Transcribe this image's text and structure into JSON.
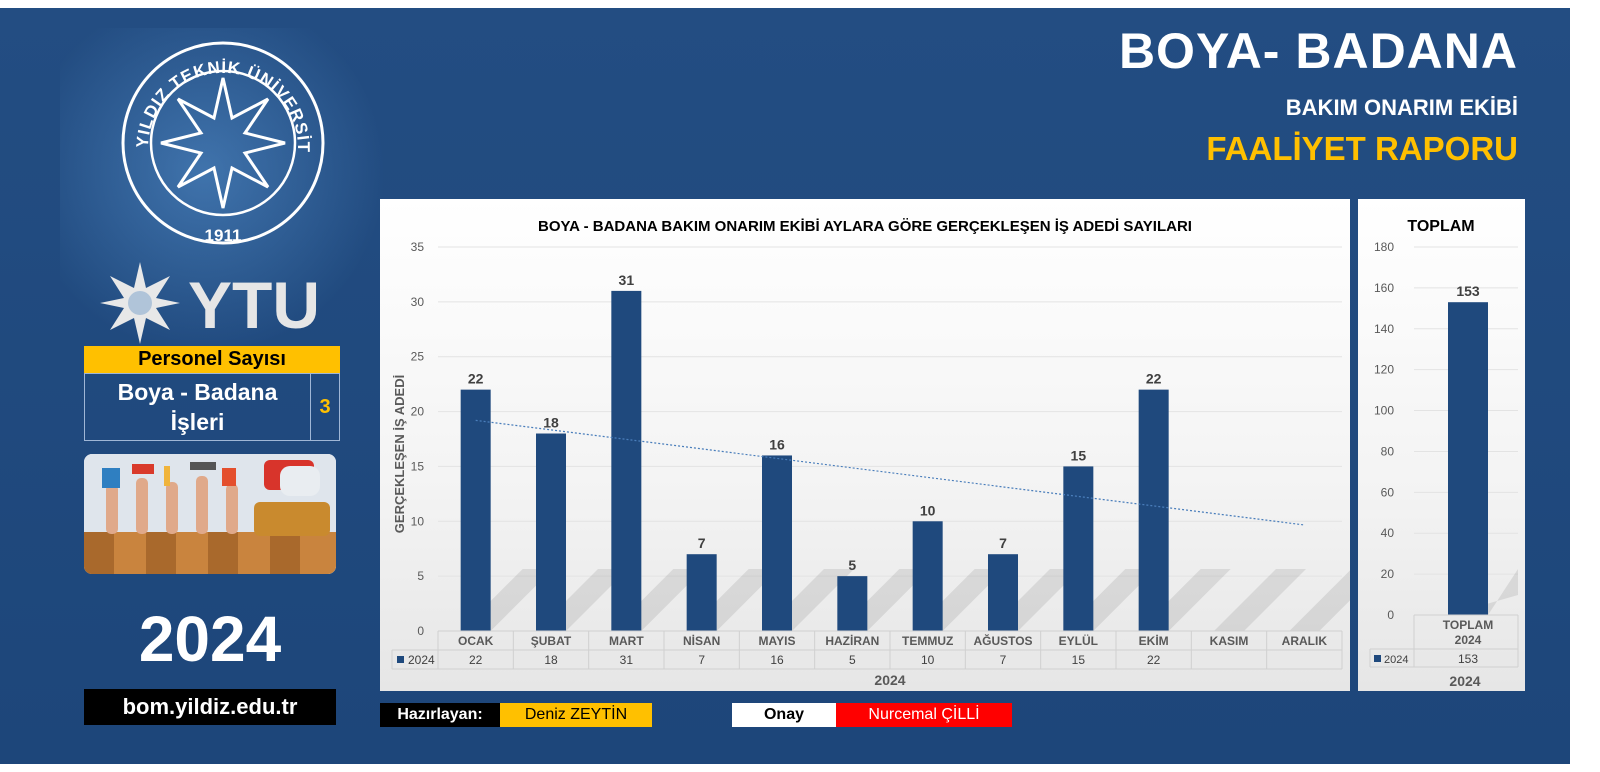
{
  "header": {
    "title": "BOYA- BADANA",
    "subtitle": "BAKIM ONARIM EKİBİ",
    "report": "FAALİYET RAPORU"
  },
  "logo": {
    "seal_text": "YILDIZ TEKNİK ÜNİVERSİTESİ",
    "seal_year": "1911",
    "brand": "YTU"
  },
  "personel": {
    "header": "Personel Sayısı",
    "label_line1": "Boya - Badana",
    "label_line2": "İşleri",
    "count": "3"
  },
  "year": "2024",
  "url": "bom.yildiz.edu.tr",
  "footer": {
    "prepared_label": "Hazırlayan:",
    "prepared_name": "Deniz ZEYTİN",
    "approval_label": "Onay",
    "approval_name": "Nurcemal ÇİLLİ"
  },
  "colors": {
    "background": "#1f4a7e",
    "bar": "#1f497d",
    "accent": "#ffc000",
    "approval": "#ff0000",
    "trend": "#4a7ebb"
  },
  "chart_data": [
    {
      "type": "bar",
      "title": "BOYA - BADANA BAKIM ONARIM EKİBİ AYLARA GÖRE GERÇEKLEŞEN İŞ ADEDİ SAYILARI",
      "ylabel": "GERÇEKLEŞEN İŞ ADEDİ",
      "xlabel": "2024",
      "ylim": [
        0,
        35
      ],
      "yticks": [
        0,
        5,
        10,
        15,
        20,
        25,
        30,
        35
      ],
      "categories": [
        "OCAK",
        "ŞUBAT",
        "MART",
        "NİSAN",
        "MAYIS",
        "HAZİRAN",
        "TEMMUZ",
        "AĞUSTOS",
        "EYLÜL",
        "EKİM",
        "KASIM",
        "ARALIK"
      ],
      "series": [
        {
          "name": "2024",
          "values": [
            22,
            18,
            31,
            7,
            16,
            5,
            10,
            7,
            15,
            22,
            null,
            null
          ]
        }
      ],
      "trendline": "linear",
      "data_table": true,
      "grid": true
    },
    {
      "type": "bar",
      "title": "TOPLAM",
      "xlabel": "2024",
      "ylim": [
        0,
        180
      ],
      "yticks": [
        0,
        20,
        40,
        60,
        80,
        100,
        120,
        140,
        160,
        180
      ],
      "categories": [
        "TOPLAM 2024"
      ],
      "series": [
        {
          "name": "2024",
          "values": [
            153
          ]
        }
      ],
      "data_table": true,
      "grid": true
    }
  ]
}
